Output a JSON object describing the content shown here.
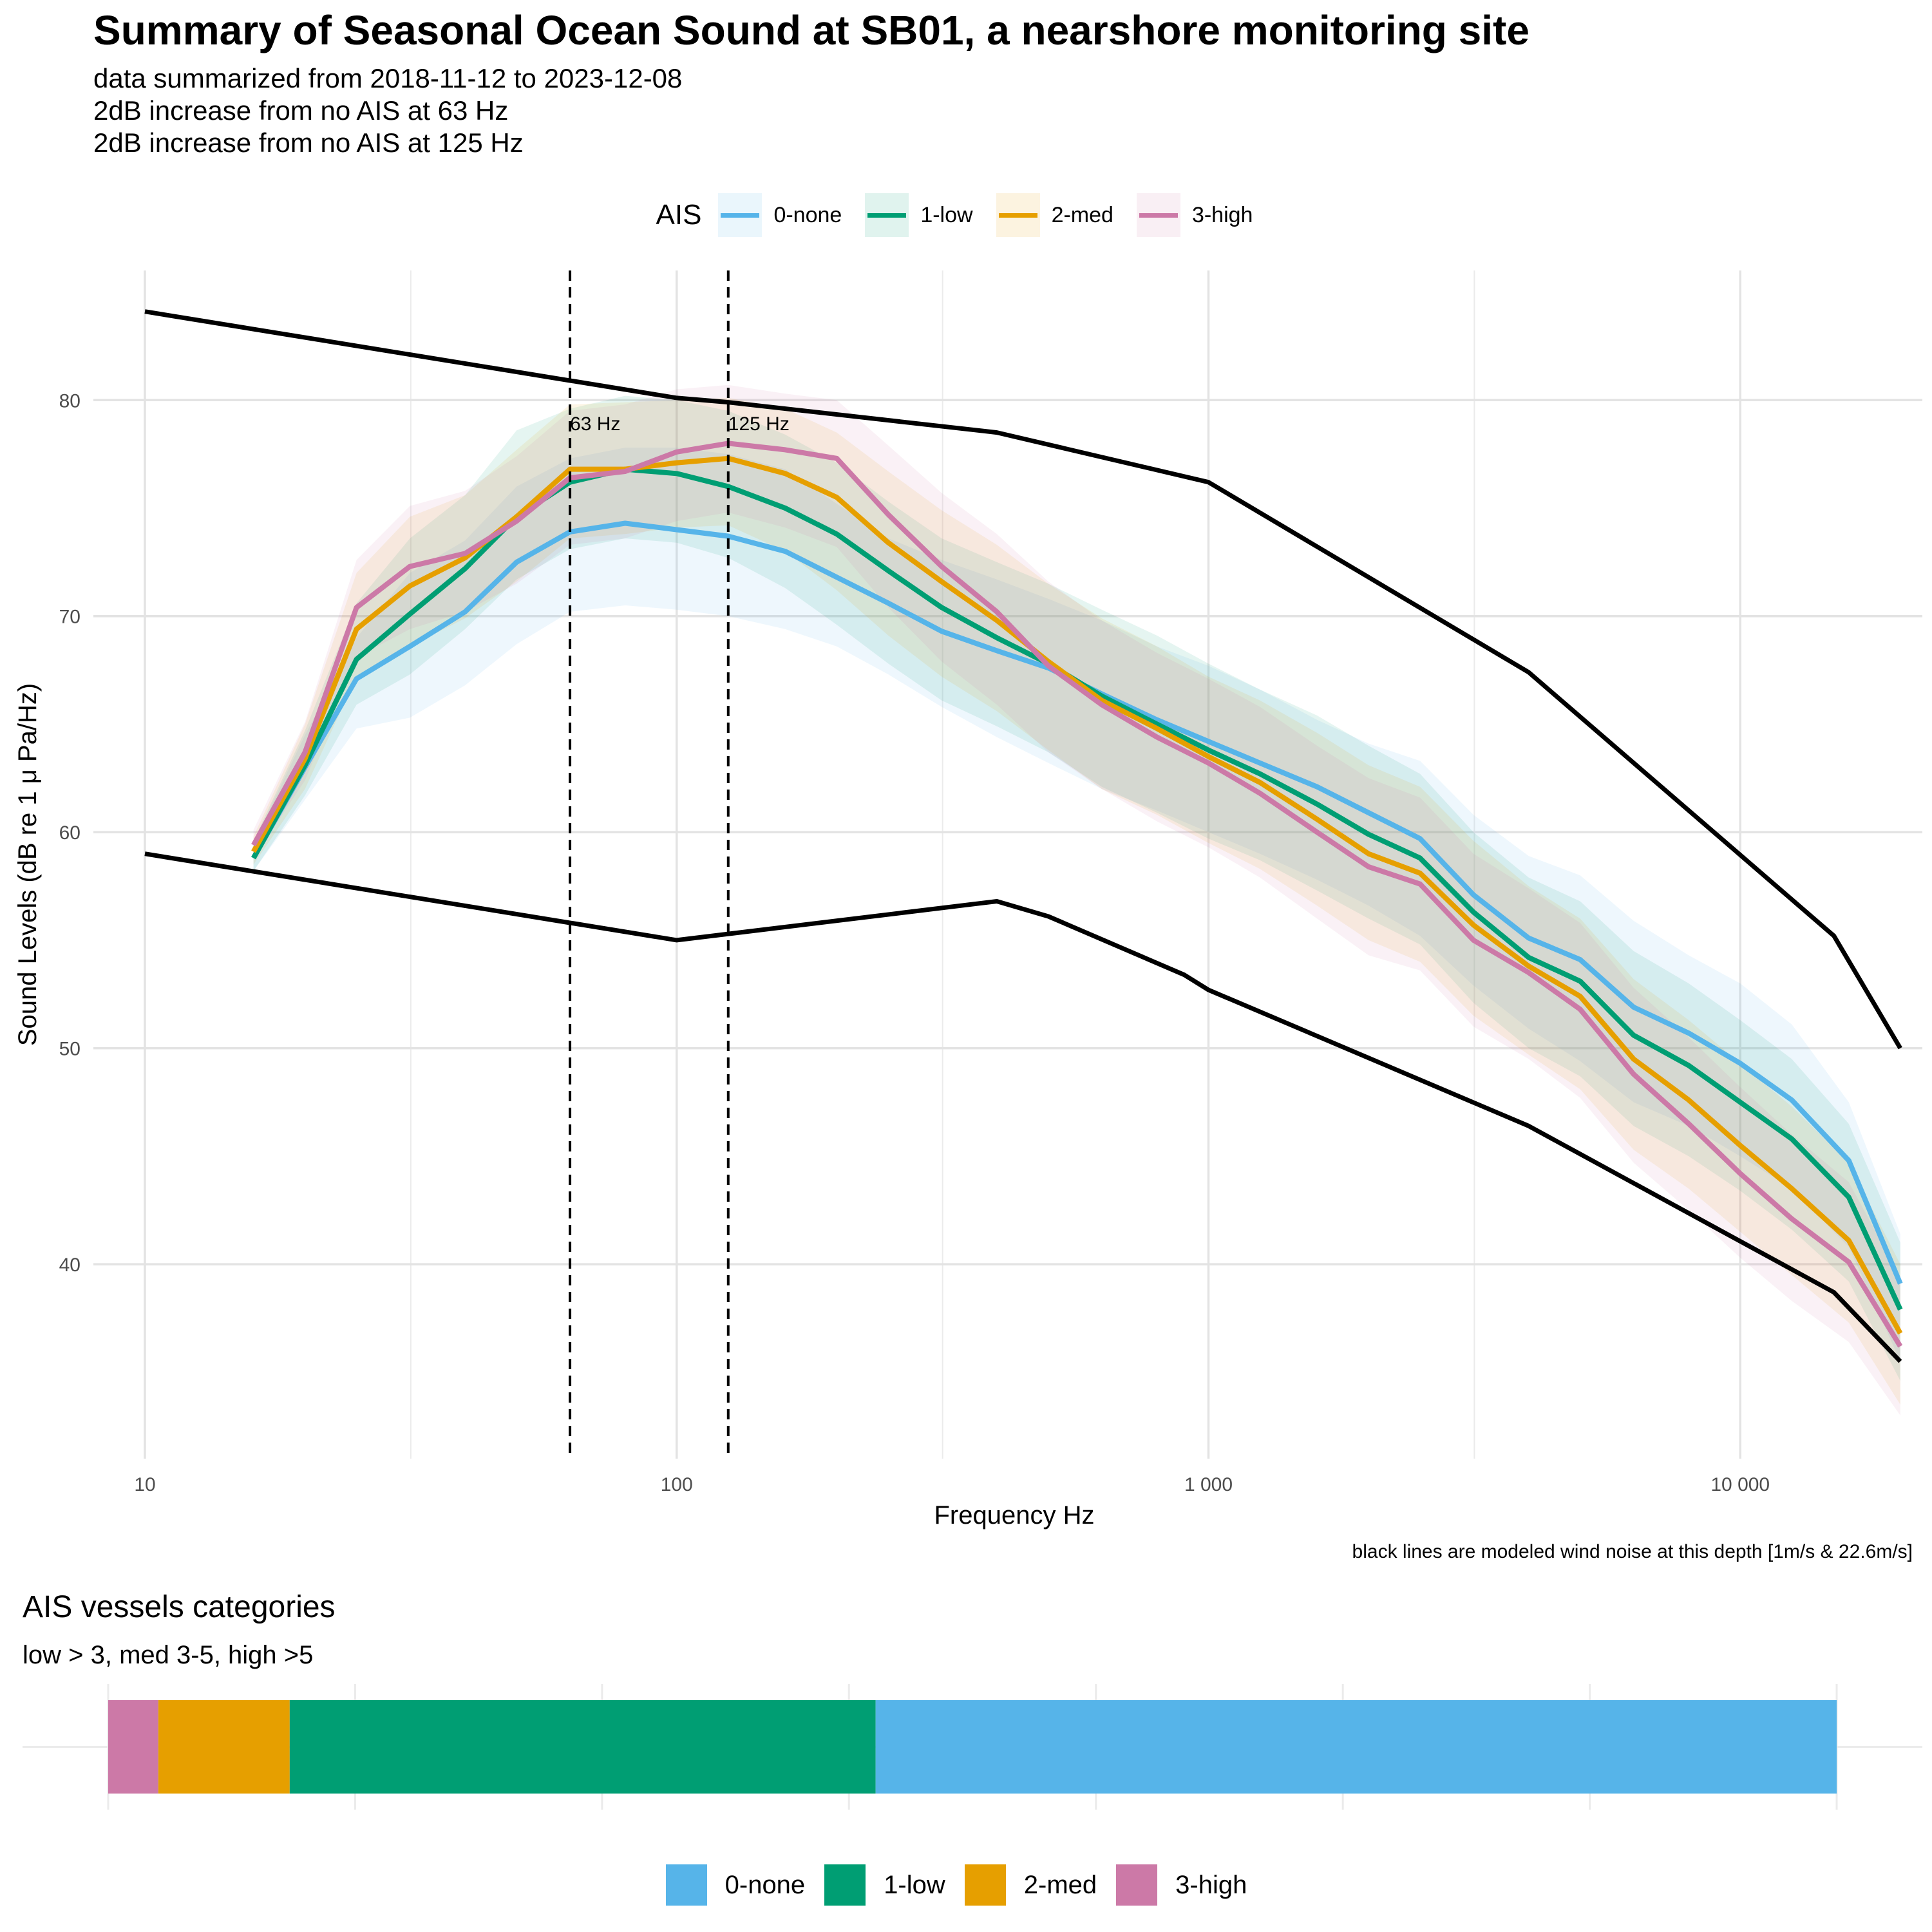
{
  "title": "Summary of Seasonal Ocean Sound at SB01, a nearshore monitoring site",
  "subtitle_lines": [
    "data summarized from 2018-11-12 to 2023-12-08",
    "2dB increase from no AIS at 63 Hz",
    "2dB increase from no AIS at 125 Hz"
  ],
  "legend": {
    "title": "AIS",
    "items": [
      {
        "label": "0-none",
        "color": "#56B4E9"
      },
      {
        "label": "1-low",
        "color": "#009E73"
      },
      {
        "label": "2-med",
        "color": "#E69F00"
      },
      {
        "label": "3-high",
        "color": "#CC79A7"
      }
    ]
  },
  "caption": "black lines are modeled wind noise at this depth [1m/s & 22.6m/s]",
  "chart_data": [
    {
      "type": "line",
      "xlabel": "Frequency Hz",
      "ylabel": "Sound Levels (dB re 1 μ Pa/Hz)",
      "x_scale": "log",
      "xlim": [
        8,
        22000
      ],
      "ylim": [
        31,
        86
      ],
      "x_ticks": [
        10,
        100,
        1000,
        10000
      ],
      "x_tick_labels": [
        "10",
        "100",
        "1 000",
        "10 000"
      ],
      "y_ticks": [
        40,
        50,
        60,
        70,
        80
      ],
      "y_tick_labels": [
        "40",
        "50",
        "60",
        "70",
        "80"
      ],
      "grid": true,
      "legend_position": "top",
      "x": [
        16,
        20,
        25,
        31.5,
        40,
        50,
        63,
        80,
        100,
        125,
        160,
        200,
        250,
        315,
        400,
        500,
        630,
        800,
        1000,
        1250,
        1600,
        2000,
        2500,
        3150,
        4000,
        5000,
        6300,
        8000,
        10000,
        12500,
        16000,
        20000
      ],
      "series": [
        {
          "name": "0-none",
          "color": "#56B4E9",
          "values": [
            58.8,
            63.0,
            67.1,
            68.6,
            70.2,
            72.5,
            73.9,
            74.3,
            74.0,
            73.7,
            73.0,
            71.8,
            70.6,
            69.3,
            68.4,
            67.6,
            66.4,
            65.2,
            64.2,
            63.2,
            62.1,
            60.9,
            59.7,
            57.1,
            55.1,
            54.1,
            51.9,
            50.7,
            49.3,
            47.6,
            44.8,
            39.1
          ],
          "band_low": [
            58.2,
            61.5,
            64.8,
            65.3,
            66.8,
            68.7,
            70.2,
            70.5,
            70.3,
            70.0,
            69.4,
            68.6,
            67.3,
            65.8,
            64.4,
            63.2,
            62.0,
            61.0,
            60.0,
            59.0,
            57.8,
            56.6,
            55.2,
            52.9,
            50.9,
            49.4,
            47.5,
            46.4,
            45.0,
            43.5,
            40.8,
            35.5
          ],
          "band_high": [
            59.5,
            64.5,
            69.0,
            72.0,
            73.5,
            76.0,
            77.3,
            77.8,
            77.8,
            77.5,
            76.8,
            75.2,
            73.6,
            72.6,
            71.7,
            70.8,
            69.8,
            68.6,
            67.7,
            66.6,
            65.2,
            64.1,
            63.3,
            60.8,
            58.9,
            58.0,
            55.9,
            54.3,
            53.0,
            51.1,
            47.5,
            41.4
          ]
        },
        {
          "name": "1-low",
          "color": "#009E73",
          "values": [
            58.8,
            63.1,
            68.0,
            70.1,
            72.2,
            74.6,
            76.2,
            76.8,
            76.6,
            76.0,
            75.0,
            73.8,
            72.1,
            70.4,
            69.0,
            67.8,
            66.3,
            65.0,
            63.8,
            62.7,
            61.3,
            59.9,
            58.8,
            56.3,
            54.2,
            53.1,
            50.6,
            49.2,
            47.5,
            45.8,
            43.1,
            37.9
          ],
          "band_low": [
            58.2,
            61.7,
            65.9,
            67.3,
            69.4,
            71.7,
            73.1,
            73.6,
            73.4,
            72.7,
            71.3,
            69.6,
            67.8,
            66.1,
            64.9,
            63.7,
            62.1,
            60.9,
            59.7,
            58.7,
            57.3,
            56.0,
            54.8,
            52.1,
            50.0,
            48.7,
            46.4,
            45.0,
            43.4,
            41.6,
            39.2,
            34.6
          ],
          "band_high": [
            59.6,
            64.7,
            70.6,
            73.6,
            75.6,
            78.6,
            79.6,
            80.2,
            80.0,
            79.5,
            78.4,
            77.1,
            75.3,
            73.6,
            72.5,
            71.5,
            70.3,
            69.1,
            67.8,
            66.6,
            65.4,
            64.0,
            62.7,
            60.0,
            57.9,
            56.8,
            54.5,
            53.0,
            51.3,
            49.5,
            46.5,
            41.0
          ]
        },
        {
          "name": "2-med",
          "color": "#E69F00",
          "values": [
            59.1,
            63.4,
            69.4,
            71.4,
            72.7,
            74.6,
            76.8,
            76.8,
            77.1,
            77.3,
            76.6,
            75.5,
            73.4,
            71.6,
            69.8,
            67.9,
            66.1,
            64.8,
            63.5,
            62.3,
            60.6,
            59.0,
            58.1,
            55.7,
            53.8,
            52.4,
            49.5,
            47.6,
            45.5,
            43.5,
            41.1,
            36.8
          ],
          "band_low": [
            58.5,
            62.0,
            67.2,
            68.6,
            69.9,
            71.6,
            73.6,
            73.8,
            74.1,
            74.2,
            73.0,
            71.2,
            69.1,
            67.2,
            65.6,
            63.8,
            62.0,
            60.8,
            59.5,
            58.3,
            56.6,
            55.0,
            54.0,
            51.5,
            49.7,
            48.1,
            45.3,
            43.5,
            41.5,
            39.5,
            37.3,
            33.5
          ],
          "band_high": [
            59.8,
            65.0,
            72.0,
            74.6,
            75.6,
            77.7,
            79.8,
            79.9,
            80.0,
            80.1,
            79.6,
            78.5,
            76.7,
            74.9,
            73.3,
            71.5,
            69.9,
            68.6,
            67.2,
            66.1,
            64.6,
            63.1,
            62.1,
            59.6,
            57.5,
            56.0,
            53.2,
            51.3,
            49.3,
            47.3,
            44.7,
            40.0
          ]
        },
        {
          "name": "3-high",
          "color": "#CC79A7",
          "values": [
            59.4,
            63.7,
            70.4,
            72.3,
            72.9,
            74.4,
            76.4,
            76.7,
            77.6,
            78.0,
            77.7,
            77.3,
            74.7,
            72.3,
            70.2,
            67.7,
            65.9,
            64.4,
            63.2,
            61.8,
            60.0,
            58.4,
            57.6,
            55.0,
            53.5,
            51.8,
            48.8,
            46.5,
            44.2,
            42.1,
            40.1,
            36.2
          ],
          "band_low": [
            58.8,
            62.4,
            68.1,
            69.4,
            70.2,
            71.5,
            73.3,
            73.6,
            74.4,
            74.8,
            74.1,
            73.2,
            70.4,
            67.9,
            65.9,
            63.7,
            62.0,
            60.5,
            59.3,
            57.9,
            56.0,
            54.3,
            53.6,
            51.0,
            49.5,
            47.7,
            44.7,
            42.5,
            40.3,
            38.3,
            36.4,
            33.0
          ],
          "band_high": [
            60.1,
            65.1,
            72.6,
            75.1,
            75.8,
            77.4,
            79.5,
            79.8,
            80.5,
            80.7,
            80.3,
            80.0,
            77.9,
            75.7,
            73.8,
            71.6,
            69.8,
            68.3,
            67.1,
            65.8,
            64.0,
            62.5,
            61.6,
            59.0,
            57.4,
            55.8,
            52.8,
            50.5,
            48.2,
            46.0,
            43.8,
            39.4
          ]
        }
      ],
      "wind_noise_lines": [
        {
          "x": [
            10,
            100,
            125,
            400,
            1000,
            4000,
            15000,
            20000
          ],
          "values": [
            84.1,
            80.1,
            79.9,
            78.5,
            76.2,
            67.4,
            55.2,
            50.0
          ]
        },
        {
          "x": [
            10,
            100,
            400,
            500,
            900,
            1000,
            4000,
            15000,
            20000
          ],
          "values": [
            59.0,
            55.0,
            56.8,
            56.1,
            53.4,
            52.7,
            46.4,
            38.7,
            35.5
          ]
        }
      ],
      "reference_lines": [
        {
          "x": 63,
          "label": "63 Hz"
        },
        {
          "x": 125,
          "label": "125 Hz"
        }
      ]
    },
    {
      "type": "bar",
      "title": "AIS vessels categories",
      "subtitle": "low > 3, med 3-5, high >5",
      "orientation": "horizontal stacked",
      "categories": [
        "3-high",
        "2-med",
        "1-low",
        "0-none"
      ],
      "values": [
        0.029,
        0.076,
        0.339,
        0.556
      ],
      "colors": [
        "#CC79A7",
        "#E69F00",
        "#009E73",
        "#56B4E9"
      ],
      "legend_position": "bottom"
    }
  ]
}
